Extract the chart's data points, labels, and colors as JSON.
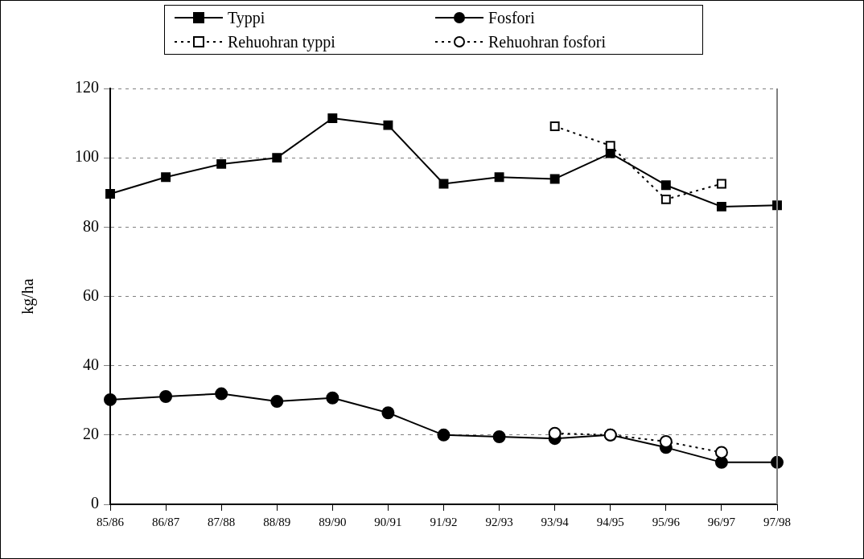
{
  "chart_data": {
    "type": "line",
    "ylabel": "kg/ha",
    "categories": [
      "85/86",
      "86/87",
      "87/88",
      "88/89",
      "89/90",
      "90/91",
      "91/92",
      "92/93",
      "93/94",
      "94/95",
      "95/96",
      "96/97",
      "97/98"
    ],
    "series": [
      {
        "name": "Typpi",
        "color": "#000000",
        "marker": "square",
        "line_style": "solid",
        "values": [
          89.6,
          94.4,
          98.2,
          100,
          111.4,
          109.4,
          92.5,
          94.4,
          93.9,
          101.3,
          92.1,
          85.9,
          86.3
        ]
      },
      {
        "name": "Fosfori",
        "color": "#000000",
        "marker": "circle",
        "line_style": "solid",
        "values": [
          30.2,
          31.1,
          31.9,
          29.7,
          30.7,
          26.4,
          20,
          19.5,
          19,
          20,
          16.4,
          12.1,
          12.1
        ]
      },
      {
        "name": "Rehuohran typpi",
        "color": "#000000",
        "marker": "square",
        "line_style": "dotted",
        "values": [
          null,
          null,
          null,
          null,
          null,
          null,
          null,
          null,
          109.1,
          103.5,
          88,
          92.5,
          null
        ]
      },
      {
        "name": "Rehuohran fosfori",
        "color": "#000000",
        "marker": "circle",
        "line_style": "dotted",
        "values": [
          null,
          null,
          null,
          null,
          null,
          null,
          null,
          null,
          20.5,
          20,
          18.1,
          15,
          null
        ]
      }
    ],
    "ylim": [
      0,
      120
    ],
    "yticks": [
      0,
      20,
      40,
      60,
      80,
      100,
      120
    ],
    "grid": "y",
    "legend": "top"
  }
}
